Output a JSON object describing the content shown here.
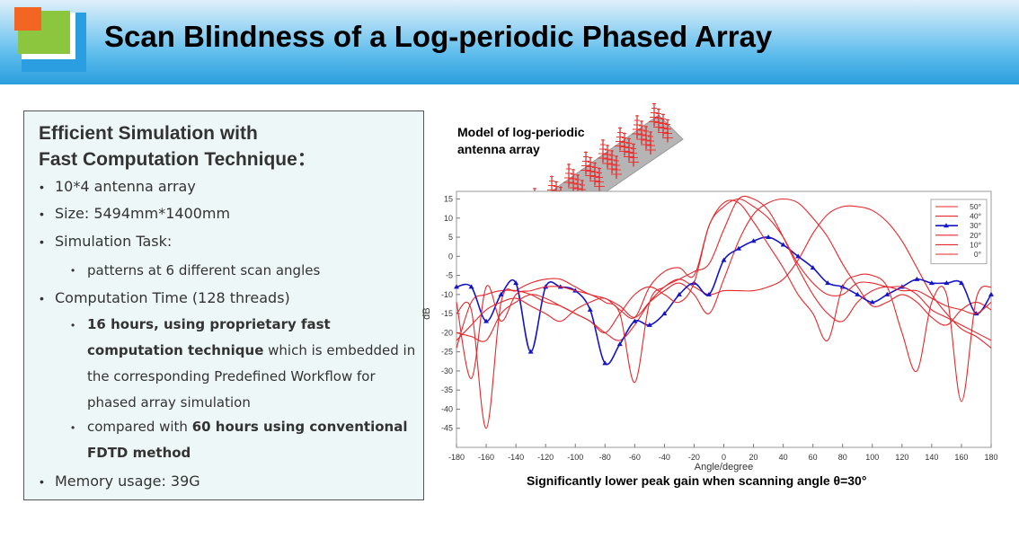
{
  "slide": {
    "title": "Scan Blindness of a Log-periodic Phased Array",
    "box_title_line1": "Efficient Simulation with",
    "box_title_line2": "Fast Computation Technique：",
    "bullets": {
      "array": "10*4 antenna  array",
      "size": "Size: 5494mm*1400mm",
      "task": "Simulation Task:",
      "task_sub": "patterns at 6 different scan angles",
      "time": "Computation Time (128 threads)",
      "time_sub1_bold": "16 hours, using proprietary fast computation technique",
      "time_sub1_rest": " which is embedded in the corresponding Predefined Workflow for phased array simulation",
      "time_sub2_pre": "compared with ",
      "time_sub2_bold": "60 hours using conventional FDTD method",
      "memory": "Memory usage: 39G"
    },
    "model_label": "Model of log-periodic antenna array",
    "caption": "Significantly  lower peak gain when scanning angle θ=30°"
  },
  "colors": {
    "red_series": "#e8262a",
    "blue_series": "#1515c8",
    "title_text": "#000000",
    "header_blue": "#3aa6e2"
  },
  "chart_data": {
    "type": "line",
    "xlabel": "Angle/degree",
    "ylabel": "dB",
    "xlim": [
      -180,
      180
    ],
    "ylim": [
      -50,
      17
    ],
    "xticks": [
      -180,
      -160,
      -140,
      -120,
      -100,
      -80,
      -60,
      -40,
      -20,
      0,
      20,
      40,
      60,
      80,
      100,
      120,
      140,
      160,
      180
    ],
    "yticks": [
      15,
      10,
      5,
      0,
      -5,
      -10,
      -15,
      -20,
      -25,
      -30,
      -35,
      -40,
      -45
    ],
    "grid": false,
    "legend_position": "top-right",
    "x": [
      -180,
      -170,
      -160,
      -150,
      -140,
      -130,
      -120,
      -110,
      -100,
      -90,
      -80,
      -70,
      -60,
      -50,
      -40,
      -30,
      -20,
      -10,
      0,
      10,
      20,
      30,
      40,
      50,
      60,
      70,
      80,
      90,
      100,
      110,
      120,
      130,
      140,
      150,
      160,
      170,
      180
    ],
    "series": [
      {
        "name": "50°",
        "color": "#e8262a",
        "marker": false,
        "values": [
          -24,
          -12,
          -10,
          -9,
          -9,
          -10,
          -12,
          -13,
          -15,
          -17,
          -20,
          -22,
          -18,
          -12,
          -8,
          -6,
          -8,
          -10,
          -9,
          -9,
          -9,
          -8,
          -6,
          -1,
          6,
          11,
          13,
          13,
          12,
          9,
          4,
          -3,
          -10,
          -15,
          -19,
          -21,
          -24
        ]
      },
      {
        "name": "40°",
        "color": "#e8262a",
        "marker": false,
        "values": [
          -15,
          -14,
          -45,
          -12,
          -9,
          -7,
          -6,
          -6,
          -8,
          -10,
          -11,
          -13,
          -16,
          -12,
          -9,
          -7,
          -10,
          -15,
          -6,
          4,
          11,
          14,
          15,
          14,
          10,
          5,
          -2,
          -8,
          -13,
          -12,
          -10,
          -12,
          -16,
          -18,
          -14,
          -12,
          -14
        ]
      },
      {
        "name": "30°",
        "color": "#1515c8",
        "marker": true,
        "values": [
          -8,
          -8,
          -17,
          -10,
          -7,
          -25,
          -8,
          -8,
          -9,
          -14,
          -28,
          -23,
          -17,
          -18,
          -15,
          -10,
          -7,
          -10,
          -1,
          2,
          4,
          5,
          3,
          0,
          -3,
          -7,
          -8,
          -10,
          -12,
          -10,
          -8,
          -6,
          -7,
          -7,
          -7,
          -15,
          -10
        ]
      },
      {
        "name": "20°",
        "color": "#e8262a",
        "marker": false,
        "values": [
          -12,
          -32,
          -8,
          -17,
          -10,
          -9,
          -8,
          -8,
          -9,
          -10,
          -12,
          -15,
          -33,
          -12,
          -8,
          -6,
          -4,
          -2,
          7,
          15,
          15,
          12,
          5,
          -3,
          -10,
          -15,
          -17,
          -12,
          -9,
          -8,
          -9,
          -9,
          -11,
          -13,
          -14,
          -15,
          -12
        ]
      },
      {
        "name": "10°",
        "color": "#e8262a",
        "marker": false,
        "values": [
          -20,
          -21,
          -22,
          -15,
          -12,
          -10,
          -11,
          -13,
          -15,
          -17,
          -20,
          -15,
          -10,
          -8,
          -10,
          -12,
          -7,
          8,
          13,
          15,
          13,
          10,
          5,
          -2,
          -7,
          -10,
          -10,
          -7,
          -7,
          -8,
          -8,
          -10,
          -14,
          -16,
          -18,
          -20,
          -22
        ]
      },
      {
        "name": "0°",
        "color": "#e8262a",
        "marker": false,
        "values": [
          -22,
          -18,
          -14,
          -12,
          -11,
          -13,
          -15,
          -17,
          -14,
          -12,
          -11,
          -14,
          -16,
          -8,
          -4,
          -3,
          -5,
          8,
          14,
          14,
          9,
          3,
          -3,
          -10,
          -15,
          -22,
          -8,
          -5,
          -5,
          -8,
          -20,
          -30,
          -12,
          -10,
          -38,
          -11,
          -8
        ]
      }
    ]
  }
}
